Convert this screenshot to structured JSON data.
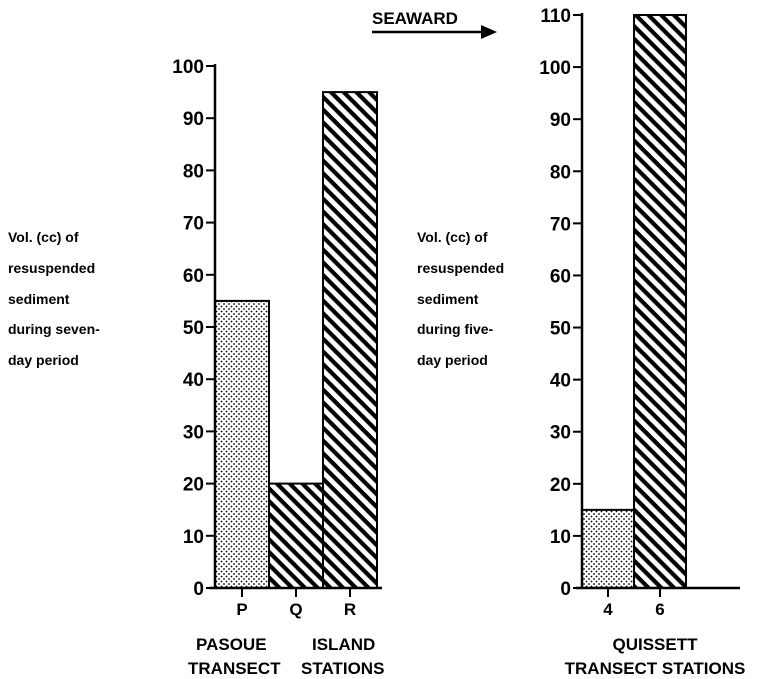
{
  "annotation": {
    "text": "SEAWARD"
  },
  "chart_data": [
    {
      "type": "bar",
      "categories": [
        "P",
        "Q",
        "R"
      ],
      "values": [
        55,
        20,
        95
      ],
      "xlabel_lines": [
        "PASOUE",
        "ISLAND",
        "TRANSECT",
        "STATIONS"
      ],
      "ylabel_lines": [
        "Vol. (cc) of",
        "resuspended",
        "sediment",
        "during seven-",
        "day period"
      ],
      "ylim": [
        0,
        100
      ],
      "yticks": [
        0,
        10,
        20,
        30,
        40,
        50,
        60,
        70,
        80,
        90,
        100
      ],
      "ytick_labels": [
        "0",
        "10",
        "20",
        "30",
        "40",
        "50",
        "60",
        "70",
        "80",
        "90",
        "100"
      ],
      "bar_patterns": [
        "stipple",
        "diagonal",
        "diagonal"
      ],
      "grid": false
    },
    {
      "type": "bar",
      "categories": [
        "4",
        "6"
      ],
      "values": [
        15,
        110
      ],
      "xlabel_lines": [
        "QUISSETT",
        "TRANSECT STATIONS"
      ],
      "ylabel_lines": [
        "Vol. (cc) of",
        "resuspended",
        "sediment",
        "during five-",
        "day period"
      ],
      "ylim": [
        0,
        110
      ],
      "yticks": [
        0,
        10,
        20,
        30,
        40,
        50,
        60,
        70,
        80,
        90,
        100,
        110
      ],
      "ytick_labels": [
        "0",
        "10",
        "20",
        "30",
        "40",
        "50",
        "60",
        "70",
        "80",
        "90",
        "100",
        "110"
      ],
      "bar_patterns": [
        "stipple",
        "diagonal"
      ],
      "grid": false
    }
  ]
}
